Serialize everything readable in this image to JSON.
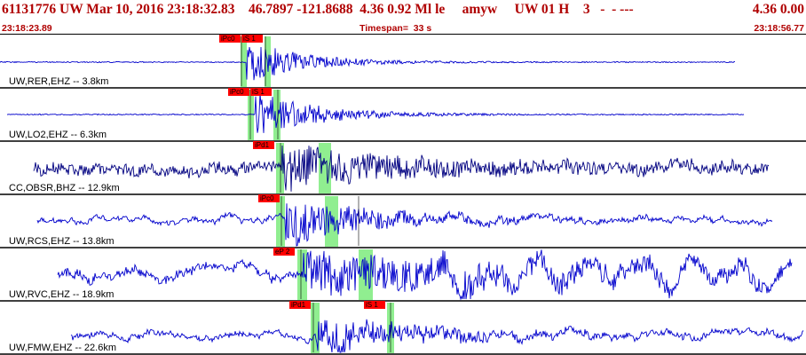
{
  "header": {
    "title": "61131776 UW Mar 10, 2016 23:18:32.83    46.7897 -121.8688  4.36 0.92 Ml le     amyw     UW 01 H    3   -  - ---",
    "right": "4.36 0.00",
    "start_time": "23:18:23.89",
    "timespan": "Timespan=  33 s",
    "end_time": "23:18:56.77"
  },
  "colors": {
    "accent": "#b00000",
    "trace": "#0000cc",
    "trace_dark": "#000080",
    "pick": "#ff0000",
    "window": "#90ee90"
  },
  "traces": [
    {
      "label": "UW,RER,EHZ -- 3.8km",
      "dark": false,
      "picks": [
        "iPc0",
        "iS 1"
      ]
    },
    {
      "label": "UW,LO2,EHZ -- 6.3km",
      "dark": false,
      "picks": [
        "iPc0",
        "iS 1"
      ]
    },
    {
      "label": "CC,OBSR,BHZ -- 12.9km",
      "dark": true,
      "picks": [
        "iPd1"
      ]
    },
    {
      "label": "UW,RCS,EHZ -- 13.8km",
      "dark": false,
      "picks": [
        "iPc0"
      ]
    },
    {
      "label": "UW,RVC,EHZ -- 18.9km",
      "dark": false,
      "picks": [
        "eP 2"
      ]
    },
    {
      "label": "UW,FMW,EHZ -- 22.6km",
      "dark": false,
      "picks": [
        "iPd1",
        "iS 1"
      ]
    }
  ]
}
